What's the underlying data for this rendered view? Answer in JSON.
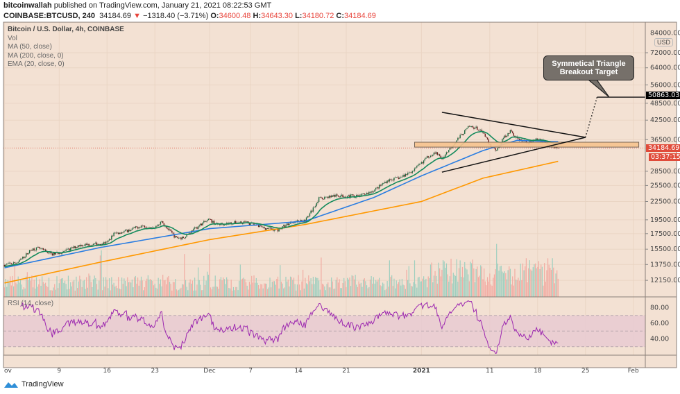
{
  "header": {
    "author": "bitcoinwallah",
    "published_text": "published on TradingView.com, January 21, 2021 08:22:53 GMT",
    "symbol": "COINBASE:BTCUSD, 240",
    "last": "34184.69",
    "change": "−1318.40 (−3.71%)",
    "o_label": "O:",
    "o": "34600.48",
    "h_label": "H:",
    "h": "34643.30",
    "l_label": "L:",
    "l": "34180.72",
    "c_label": "C:",
    "c": "34184.69"
  },
  "legend": {
    "title": "Bitcoin / U.S. Dollar, 4h, COINBASE",
    "vol": "Vol",
    "ma50": "MA (50, close)",
    "ma200": "MA (200, close, 0)",
    "ema20": "EMA (20, close, 0)"
  },
  "rsi_label": "RSI (14, close)",
  "currency": "USD",
  "annotation": {
    "line1": "Symmetical Triangle",
    "line2": "Breakout Target"
  },
  "price_tags": {
    "target": "50863.03",
    "last": "34184.69",
    "countdown": "03:37:15"
  },
  "footer": {
    "brand": "TradingView"
  },
  "colors": {
    "background": "#f3e1d3",
    "ma50": "#2a7de1",
    "ma200": "#ff9800",
    "ema20": "#138a5c",
    "rsi": "#9c27b0",
    "up": "#1e6b3f",
    "down": "#6e1c1c",
    "last_tag": "#e04b3a",
    "zone": "#f7c48f"
  },
  "chart_data": {
    "type": "candlestick",
    "interval": "4h",
    "y_scale": "log",
    "grid": true,
    "price_ticks": [
      "72000.00",
      "64000.00",
      "56000.00",
      "48500.00",
      "42500.00",
      "36500.00",
      "28500.00",
      "25500.00",
      "22500.00",
      "19500.00",
      "17500.00",
      "15500.00",
      "13750.00",
      "12150.00"
    ],
    "price_tick_values": [
      72000,
      64000,
      56000,
      48500,
      42500,
      36500,
      28500,
      25500,
      22500,
      19500,
      17500,
      15500,
      13750,
      12150
    ],
    "rsi_ticks": [
      "80.00",
      "60.00",
      "40.00"
    ],
    "rsi_tick_values": [
      80,
      60,
      40
    ],
    "rsi_band": [
      30,
      70
    ],
    "time_ticks": [
      {
        "label": "ov",
        "date": "2020-11-01"
      },
      {
        "label": "9",
        "date": "2020-11-09"
      },
      {
        "label": "16",
        "date": "2020-11-16"
      },
      {
        "label": "23",
        "date": "2020-11-23"
      },
      {
        "label": "Dec",
        "date": "2020-12-01"
      },
      {
        "label": "7",
        "date": "2020-12-07"
      },
      {
        "label": "14",
        "date": "2020-12-14"
      },
      {
        "label": "21",
        "date": "2020-12-21"
      },
      {
        "label": "2021",
        "date": "2021-01-01"
      },
      {
        "label": "11",
        "date": "2021-01-11"
      },
      {
        "label": "18",
        "date": "2021-01-18"
      },
      {
        "label": "25",
        "date": "2021-01-25"
      },
      {
        "label": "Feb",
        "date": "2021-02-01"
      }
    ],
    "x_range": [
      "2020-11-01",
      "2021-02-07"
    ],
    "closes": [
      [
        "2020-11-01",
        13700
      ],
      [
        "2020-11-03",
        14000
      ],
      [
        "2020-11-05",
        15500
      ],
      [
        "2020-11-06",
        15600
      ],
      [
        "2020-11-08",
        14900
      ],
      [
        "2020-11-10",
        15300
      ],
      [
        "2020-11-12",
        16000
      ],
      [
        "2020-11-14",
        16100
      ],
      [
        "2020-11-16",
        16300
      ],
      [
        "2020-11-17",
        17500
      ],
      [
        "2020-11-19",
        17900
      ],
      [
        "2020-11-21",
        18600
      ],
      [
        "2020-11-23",
        18400
      ],
      [
        "2020-11-24",
        19200
      ],
      [
        "2020-11-26",
        17000
      ],
      [
        "2020-11-27",
        16900
      ],
      [
        "2020-11-28",
        17600
      ],
      [
        "2020-11-30",
        19000
      ],
      [
        "2020-12-01",
        19500
      ],
      [
        "2020-12-02",
        18800
      ],
      [
        "2020-12-04",
        19000
      ],
      [
        "2020-12-06",
        19200
      ],
      [
        "2020-12-08",
        18600
      ],
      [
        "2020-12-09",
        18300
      ],
      [
        "2020-12-11",
        18000
      ],
      [
        "2020-12-13",
        19200
      ],
      [
        "2020-12-15",
        19400
      ],
      [
        "2020-12-16",
        21000
      ],
      [
        "2020-12-17",
        23000
      ],
      [
        "2020-12-19",
        23500
      ],
      [
        "2020-12-21",
        23500
      ],
      [
        "2020-12-23",
        23500
      ],
      [
        "2020-12-25",
        24500
      ],
      [
        "2020-12-27",
        26500
      ],
      [
        "2020-12-29",
        27200
      ],
      [
        "2020-12-31",
        28900
      ],
      [
        "2021-01-02",
        32000
      ],
      [
        "2021-01-03",
        33000
      ],
      [
        "2021-01-04",
        31500
      ],
      [
        "2021-01-06",
        36000
      ],
      [
        "2021-01-08",
        40500
      ],
      [
        "2021-01-09",
        40000
      ],
      [
        "2021-01-10",
        38500
      ],
      [
        "2021-01-11",
        35000
      ],
      [
        "2021-01-12",
        33500
      ],
      [
        "2021-01-13",
        37000
      ],
      [
        "2021-01-14",
        39000
      ],
      [
        "2021-01-15",
        36800
      ],
      [
        "2021-01-16",
        36000
      ],
      [
        "2021-01-17",
        35800
      ],
      [
        "2021-01-18",
        36500
      ],
      [
        "2021-01-19",
        36000
      ],
      [
        "2021-01-20",
        34500
      ],
      [
        "2021-01-21",
        34184.69
      ]
    ],
    "ma50": [
      [
        "2020-11-01",
        13400
      ],
      [
        "2020-11-15",
        15700
      ],
      [
        "2020-12-01",
        18200
      ],
      [
        "2020-12-15",
        19300
      ],
      [
        "2020-12-25",
        23200
      ],
      [
        "2021-01-01",
        27500
      ],
      [
        "2021-01-10",
        33500
      ],
      [
        "2021-01-15",
        36300
      ],
      [
        "2021-01-21",
        35900
      ]
    ],
    "ma200": [
      [
        "2020-11-01",
        11900
      ],
      [
        "2020-11-15",
        14000
      ],
      [
        "2020-12-01",
        16700
      ],
      [
        "2020-12-15",
        18800
      ],
      [
        "2021-01-01",
        22500
      ],
      [
        "2021-01-10",
        27000
      ],
      [
        "2021-01-21",
        30800
      ]
    ],
    "drawings": {
      "triangle_upper": [
        [
          "2021-01-04",
          45200
        ],
        [
          "2021-01-25",
          37150
        ]
      ],
      "triangle_lower": [
        [
          "2021-01-04",
          28300
        ],
        [
          "2021-01-25",
          37150
        ]
      ],
      "breakout_projection": [
        [
          "2021-01-25",
          37150
        ],
        [
          "2021-01-26.7",
          50863.03
        ]
      ],
      "target_level": 50863.03,
      "support_zone": {
        "from": "2020-12-31",
        "to": "2021-02-01.8",
        "low": 34420,
        "high": 35770
      }
    }
  }
}
